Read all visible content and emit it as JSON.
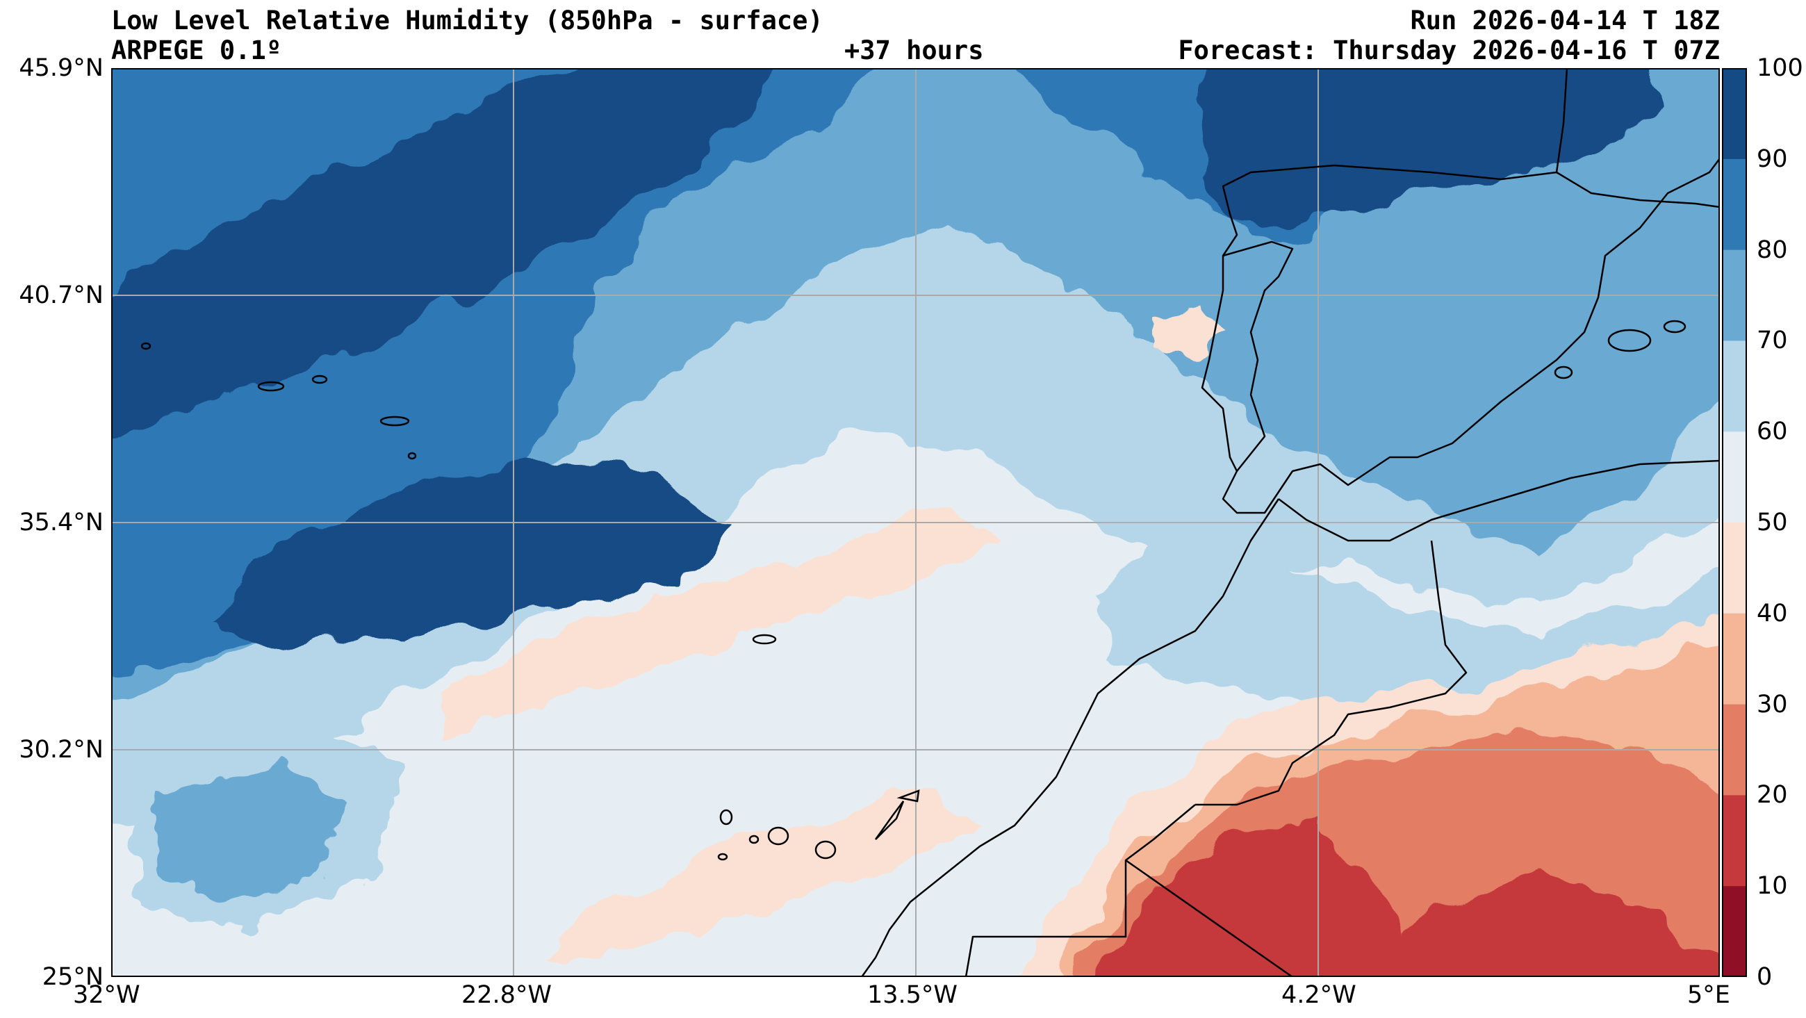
{
  "header": {
    "title": "Low Level Relative Humidity (850hPa - surface)",
    "model": "ARPEGE 0.1º",
    "lead": "+37 hours",
    "run": "Run 2026-04-14 T 18Z",
    "forecast": "Forecast: Thursday 2026-04-16 T 07Z"
  },
  "map": {
    "variable": "Relative Humidity",
    "unit": "%",
    "lat_range": [
      25,
      45.9
    ],
    "lon_range": [
      -32,
      5
    ],
    "lat_ticks": [
      "45.9°N",
      "40.7°N",
      "35.4°N",
      "30.2°N",
      "25°N"
    ],
    "lon_ticks": [
      "32°W",
      "22.8°W",
      "13.5°W",
      "4.2°W",
      "5°E"
    ],
    "gridlines": true
  },
  "colorbar": {
    "levels": [
      "100",
      "90",
      "80",
      "70",
      "60",
      "50",
      "40",
      "30",
      "20",
      "10",
      "0"
    ],
    "colors": [
      "#154b85",
      "#2f79b5",
      "#6aaad2",
      "#b5d6e8",
      "#e6eef3",
      "#fbe1d3",
      "#f4b697",
      "#e37d64",
      "#c5383b",
      "#8f0f26"
    ]
  }
}
